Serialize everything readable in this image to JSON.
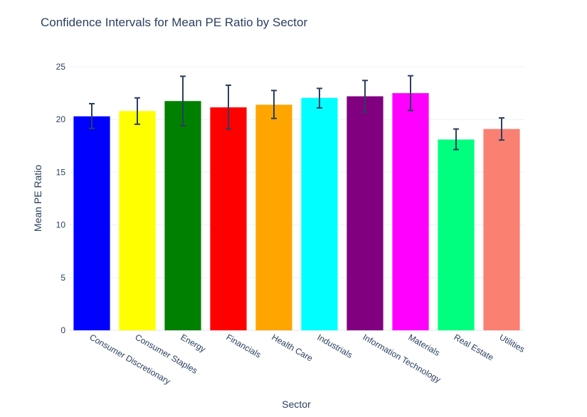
{
  "chart_data": {
    "type": "bar",
    "title": "Confidence Intervals for Mean PE Ratio by Sector",
    "xlabel": "Sector",
    "ylabel": "Mean PE Ratio",
    "ylim": [
      0,
      25
    ],
    "yticks": [
      0,
      5,
      10,
      15,
      20,
      25
    ],
    "grid": true,
    "legend": "none",
    "categories": [
      "Consumer Discretionary",
      "Consumer Staples",
      "Energy",
      "Financials",
      "Health Care",
      "Industrials",
      "Information Technology",
      "Materials",
      "Real Estate",
      "Utilities"
    ],
    "values": [
      20.3,
      20.8,
      21.75,
      21.15,
      21.4,
      22.05,
      22.2,
      22.5,
      18.1,
      19.1
    ],
    "error_lower": [
      19.15,
      19.55,
      19.4,
      19.1,
      20.1,
      21.1,
      20.7,
      20.85,
      17.15,
      18.05
    ],
    "error_upper": [
      21.5,
      22.05,
      24.1,
      23.25,
      22.75,
      22.95,
      23.7,
      24.15,
      19.1,
      20.15
    ],
    "colors": [
      "#0000ff",
      "#ffff00",
      "#008000",
      "#ff0000",
      "#ffa500",
      "#00ffff",
      "#800080",
      "#ff00ff",
      "#00ff7f",
      "#fa8072"
    ],
    "error_bar_color": "#2a3f5f"
  }
}
